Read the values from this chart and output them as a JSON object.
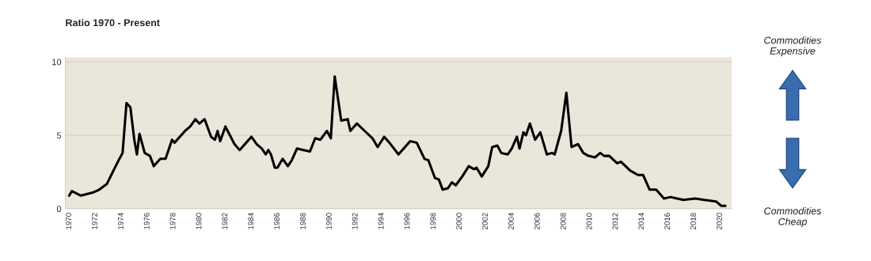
{
  "chart_data": {
    "type": "line",
    "title": "Ratio 1970 - Present",
    "annotations": [
      "Commodities\nExpensive",
      "Commodities\nCheap"
    ],
    "x": [
      1970.0,
      1970.2,
      1970.9,
      1971.8,
      1972.3,
      1972.9,
      1973.4,
      1973.8,
      1974.1,
      1974.4,
      1974.7,
      1975.0,
      1975.2,
      1975.4,
      1975.8,
      1976.2,
      1976.5,
      1977.0,
      1977.4,
      1977.9,
      1978.1,
      1978.9,
      1979.3,
      1979.7,
      1980.0,
      1980.4,
      1980.9,
      1981.2,
      1981.4,
      1981.6,
      1982.0,
      1982.7,
      1983.1,
      1983.6,
      1984.0,
      1984.4,
      1984.8,
      1985.1,
      1985.3,
      1985.5,
      1985.8,
      1986.0,
      1986.4,
      1986.8,
      1987.1,
      1987.5,
      1988.0,
      1988.5,
      1988.9,
      1989.3,
      1989.8,
      1990.1,
      1990.4,
      1990.9,
      1991.4,
      1991.6,
      1992.1,
      1992.7,
      1993.3,
      1993.7,
      1994.2,
      1994.6,
      1995.3,
      1996.2,
      1996.7,
      1997.3,
      1997.6,
      1998.1,
      1998.4,
      1998.7,
      1999.1,
      1999.4,
      1999.7,
      2000.2,
      2000.7,
      2001.1,
      2001.3,
      2001.7,
      2002.2,
      2002.5,
      2002.9,
      2003.2,
      2003.7,
      2004.0,
      2004.4,
      2004.6,
      2004.9,
      2005.1,
      2005.4,
      2005.8,
      2006.2,
      2006.7,
      2007.1,
      2007.3,
      2007.8,
      2008.2,
      2008.6,
      2009.1,
      2009.5,
      2009.9,
      2010.4,
      2010.8,
      2011.1,
      2011.5,
      2012.1,
      2012.4,
      2013.1,
      2013.7,
      2014.1,
      2014.6,
      2015.1,
      2015.7,
      2016.2,
      2016.7,
      2017.2,
      2018.1,
      2018.8,
      2019.7,
      2020.1,
      2020.4
    ],
    "series": [
      {
        "color": "#000000",
        "values": [
          0.9,
          1.2,
          0.9,
          1.1,
          1.3,
          1.7,
          2.6,
          3.3,
          3.8,
          7.2,
          6.9,
          4.7,
          3.7,
          5.1,
          3.8,
          3.6,
          2.9,
          3.4,
          3.4,
          4.7,
          4.5,
          5.3,
          5.6,
          6.1,
          5.8,
          6.1,
          4.9,
          4.7,
          5.3,
          4.6,
          5.6,
          4.4,
          4.0,
          4.5,
          4.9,
          4.4,
          4.1,
          3.7,
          4.0,
          3.7,
          2.8,
          2.8,
          3.4,
          2.9,
          3.3,
          4.1,
          4.0,
          3.9,
          4.8,
          4.7,
          5.3,
          4.8,
          9.0,
          6.0,
          6.1,
          5.3,
          5.8,
          5.3,
          4.8,
          4.2,
          4.9,
          4.5,
          3.7,
          4.6,
          4.5,
          3.4,
          3.3,
          2.1,
          2.0,
          1.3,
          1.4,
          1.8,
          1.6,
          2.2,
          2.9,
          2.7,
          2.8,
          2.2,
          2.9,
          4.2,
          4.3,
          3.8,
          3.7,
          4.1,
          4.9,
          4.1,
          5.2,
          5.0,
          5.8,
          4.7,
          5.2,
          3.7,
          3.8,
          3.7,
          5.3,
          7.9,
          4.2,
          4.4,
          3.8,
          3.6,
          3.5,
          3.8,
          3.6,
          3.6,
          3.1,
          3.2,
          2.6,
          2.3,
          2.3,
          1.3,
          1.3,
          0.7,
          0.8,
          0.7,
          0.6,
          0.7,
          0.6,
          0.5,
          0.2,
          0.2
        ]
      }
    ],
    "xlim": [
      1969.7,
      2020.9
    ],
    "xticks": [
      1970,
      1972,
      1974,
      1976,
      1978,
      1980,
      1982,
      1984,
      1986,
      1988,
      1990,
      1992,
      1994,
      1996,
      1998,
      2000,
      2002,
      2004,
      2006,
      2008,
      2010,
      2012,
      2014,
      2016,
      2018,
      2020
    ],
    "ylim": [
      0,
      10.3
    ],
    "yticks": [
      0,
      5,
      10
    ],
    "grid": "y",
    "marker": "none",
    "line_style": "solid"
  }
}
